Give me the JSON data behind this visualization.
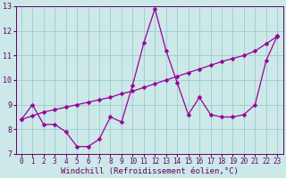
{
  "xlabel": "Windchill (Refroidissement éolien,°C)",
  "xlim": [
    -0.5,
    23.5
  ],
  "ylim": [
    7,
    13
  ],
  "yticks": [
    7,
    8,
    9,
    10,
    11,
    12,
    13
  ],
  "xticks": [
    0,
    1,
    2,
    3,
    4,
    5,
    6,
    7,
    8,
    9,
    10,
    11,
    12,
    13,
    14,
    15,
    16,
    17,
    18,
    19,
    20,
    21,
    22,
    23
  ],
  "background_color": "#cce8e8",
  "grid_color": "#99cccc",
  "line_color": "#990099",
  "curve1_x": [
    0,
    1,
    2,
    3,
    4,
    5,
    6,
    7,
    8,
    9,
    10,
    11,
    12,
    13,
    14,
    15,
    16,
    17,
    18,
    19,
    20,
    21,
    22,
    23
  ],
  "curve1_y": [
    8.4,
    9.0,
    8.2,
    8.2,
    7.9,
    7.3,
    7.3,
    7.6,
    8.5,
    8.3,
    9.8,
    11.5,
    12.9,
    11.2,
    9.9,
    8.6,
    9.3,
    8.6,
    8.5,
    8.5,
    8.6,
    9.0,
    10.8,
    11.8
  ],
  "curve2_x": [
    0,
    1,
    2,
    3,
    4,
    5,
    6,
    7,
    8,
    9,
    10,
    11,
    12,
    13,
    14,
    15,
    16,
    17,
    18,
    19,
    20,
    21,
    22,
    23
  ],
  "curve2_y": [
    8.4,
    8.55,
    8.7,
    8.8,
    8.9,
    9.0,
    9.1,
    9.2,
    9.3,
    9.45,
    9.55,
    9.7,
    9.85,
    10.0,
    10.15,
    10.3,
    10.45,
    10.6,
    10.75,
    10.88,
    11.0,
    11.18,
    11.48,
    11.78
  ],
  "markersize": 2.5,
  "linewidth": 0.9,
  "xlabel_fontsize": 6.5,
  "tick_fontsize": 5.5,
  "text_color": "#660066"
}
